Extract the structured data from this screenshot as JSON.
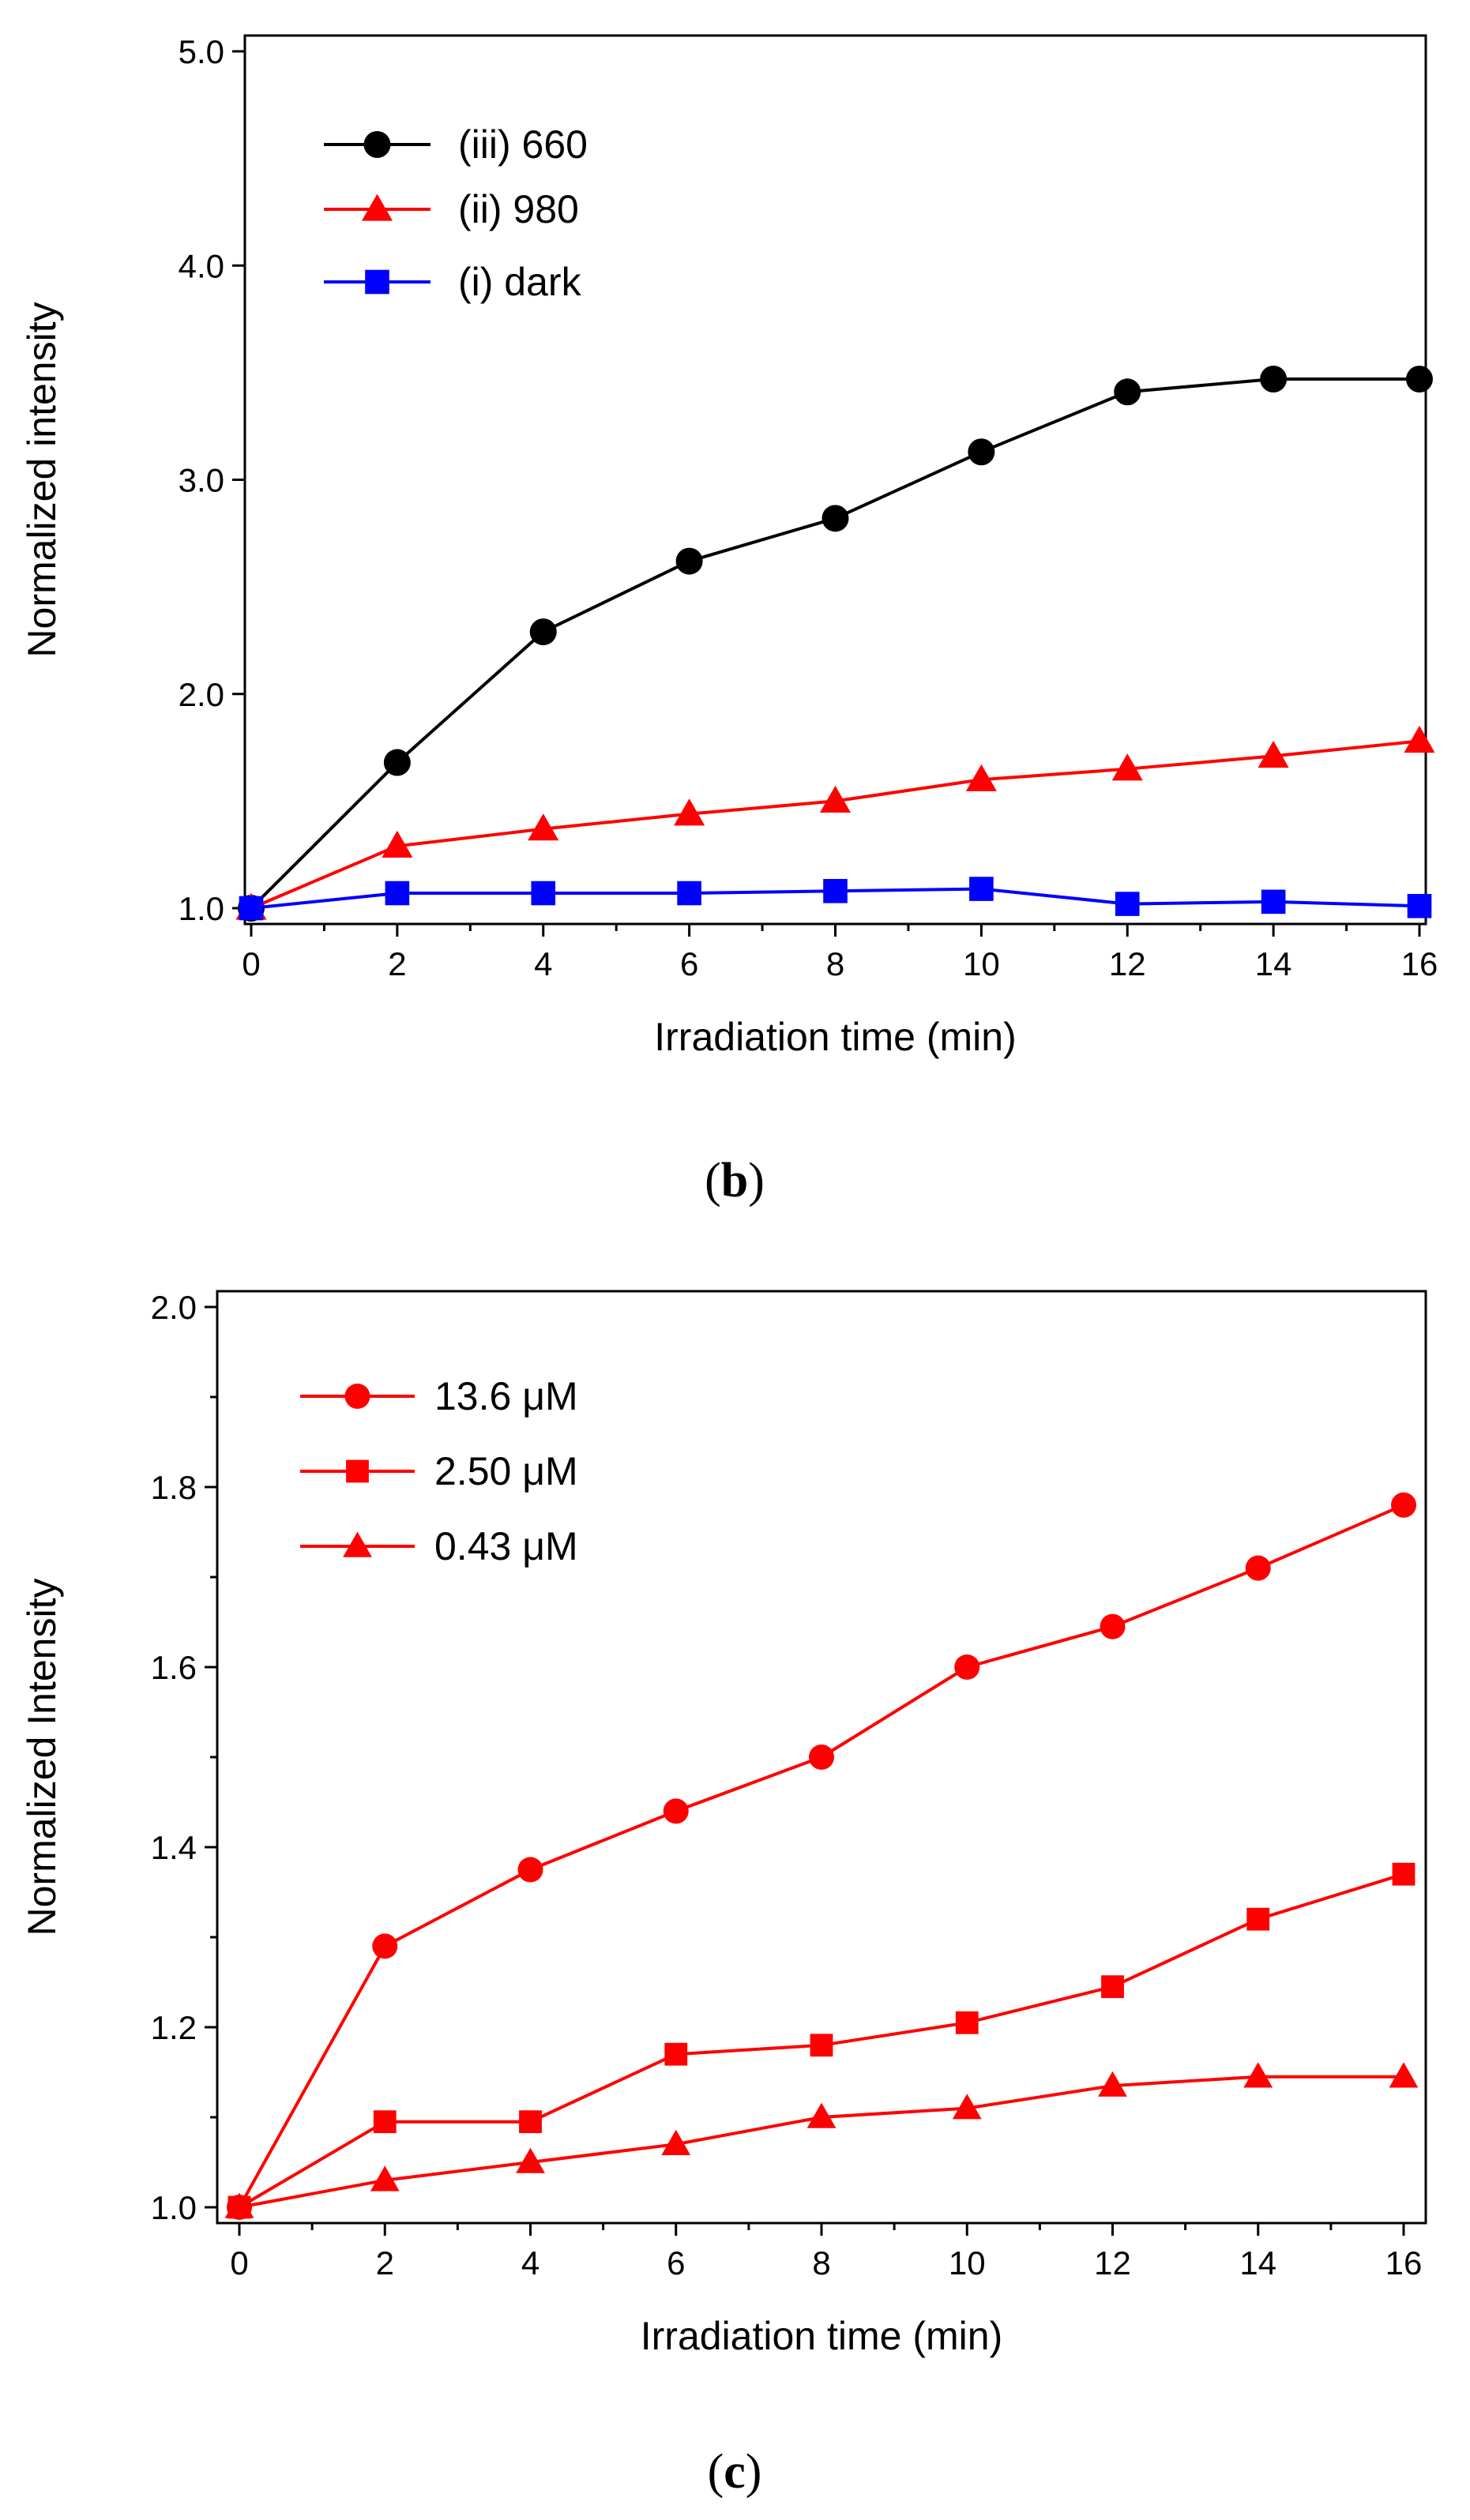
{
  "chart_data": [
    {
      "panel": "b",
      "panel_label_open": "(",
      "panel_label_letter": "b",
      "panel_label_close": ")",
      "type": "line",
      "title": "",
      "xlabel": "Irradiation time (min)",
      "ylabel": "Normalized intensity",
      "xlim": [
        0,
        16
      ],
      "ylim": [
        1.0,
        5.0
      ],
      "xticks": [
        0,
        2,
        4,
        6,
        8,
        10,
        12,
        14,
        16
      ],
      "yticks": [
        1.0,
        2.0,
        3.0,
        4.0,
        5.0
      ],
      "ytick_labels": [
        "1.0",
        "2.0",
        "3.0",
        "4.0",
        "5.0"
      ],
      "grid": false,
      "legend_position": "top-left",
      "series": [
        {
          "name": "(iii) 660",
          "marker": "circle",
          "color": "#000000",
          "x": [
            0,
            2,
            4,
            6,
            8,
            10,
            12,
            14,
            16
          ],
          "values": [
            1.0,
            1.68,
            2.29,
            2.62,
            2.82,
            3.13,
            3.41,
            3.47,
            3.47
          ]
        },
        {
          "name": "(ii) 980",
          "marker": "triangle",
          "color": "#ff0000",
          "x": [
            0,
            2,
            4,
            6,
            8,
            10,
            12,
            14,
            16
          ],
          "values": [
            1.0,
            1.29,
            1.37,
            1.44,
            1.5,
            1.6,
            1.65,
            1.71,
            1.78
          ]
        },
        {
          "name": "(i) dark",
          "marker": "square",
          "color": "#0000ff",
          "x": [
            0,
            2,
            4,
            6,
            8,
            10,
            12,
            14,
            16
          ],
          "values": [
            1.0,
            1.07,
            1.07,
            1.07,
            1.08,
            1.09,
            1.02,
            1.03,
            1.01
          ]
        }
      ]
    },
    {
      "panel": "c",
      "panel_label_open": "(",
      "panel_label_letter": "c",
      "panel_label_close": ")",
      "type": "line",
      "title": "",
      "xlabel": "Irradiation time (min)",
      "ylabel": "Normalized Intensity",
      "xlim": [
        0,
        16
      ],
      "ylim": [
        1.0,
        2.0
      ],
      "xticks": [
        0,
        2,
        4,
        6,
        8,
        10,
        12,
        14,
        16
      ],
      "yticks": [
        1.0,
        1.2,
        1.4,
        1.6,
        1.8,
        2.0
      ],
      "ytick_labels": [
        "1.0",
        "1.2",
        "1.4",
        "1.6",
        "1.8",
        "2.0"
      ],
      "grid": false,
      "legend_position": "top-left",
      "series": [
        {
          "name": "13.6 μM",
          "marker": "circle",
          "color": "#ff0000",
          "x": [
            0,
            2,
            4,
            6,
            8,
            10,
            12,
            14,
            16
          ],
          "values": [
            1.0,
            1.29,
            1.375,
            1.44,
            1.5,
            1.6,
            1.645,
            1.71,
            1.78
          ]
        },
        {
          "name": "2.50 μM",
          "marker": "square",
          "color": "#ff0000",
          "x": [
            0,
            2,
            4,
            6,
            8,
            10,
            12,
            14,
            16
          ],
          "values": [
            1.0,
            1.095,
            1.095,
            1.17,
            1.18,
            1.205,
            1.245,
            1.32,
            1.37
          ]
        },
        {
          "name": "0.43 μM",
          "marker": "triangle",
          "color": "#ff0000",
          "x": [
            0,
            2,
            4,
            6,
            8,
            10,
            12,
            14,
            16
          ],
          "values": [
            1.0,
            1.03,
            1.05,
            1.07,
            1.1,
            1.11,
            1.135,
            1.145,
            1.145
          ]
        }
      ]
    }
  ]
}
